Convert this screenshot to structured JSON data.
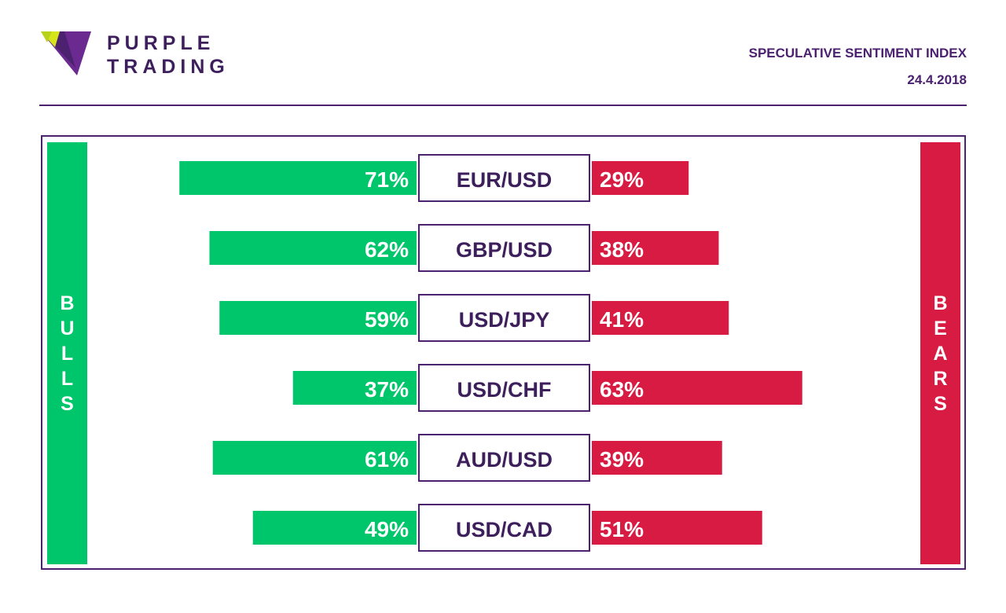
{
  "brand": {
    "line1": "PURPLE",
    "line2": "TRADING"
  },
  "header": {
    "title": "SPECULATIVE SENTIMENT INDEX",
    "date": "24.4.2018"
  },
  "sides": {
    "bulls": "BULLS",
    "bears": "BEARS"
  },
  "colors": {
    "bull": "#00c66b",
    "bear": "#d81b42",
    "purple": "#4b2170",
    "logo_yellow": "#d6e51b"
  },
  "chart_data": {
    "type": "bar",
    "title": "SPECULATIVE SENTIMENT INDEX",
    "categories": [
      "EUR/USD",
      "GBP/USD",
      "USD/JPY",
      "USD/CHF",
      "AUD/USD",
      "USD/CAD"
    ],
    "series": [
      {
        "name": "BULLS",
        "values": [
          71,
          62,
          59,
          37,
          61,
          49
        ]
      },
      {
        "name": "BEARS",
        "values": [
          29,
          38,
          41,
          63,
          39,
          51
        ]
      }
    ],
    "unit": "%",
    "xlim": [
      0,
      100
    ]
  }
}
